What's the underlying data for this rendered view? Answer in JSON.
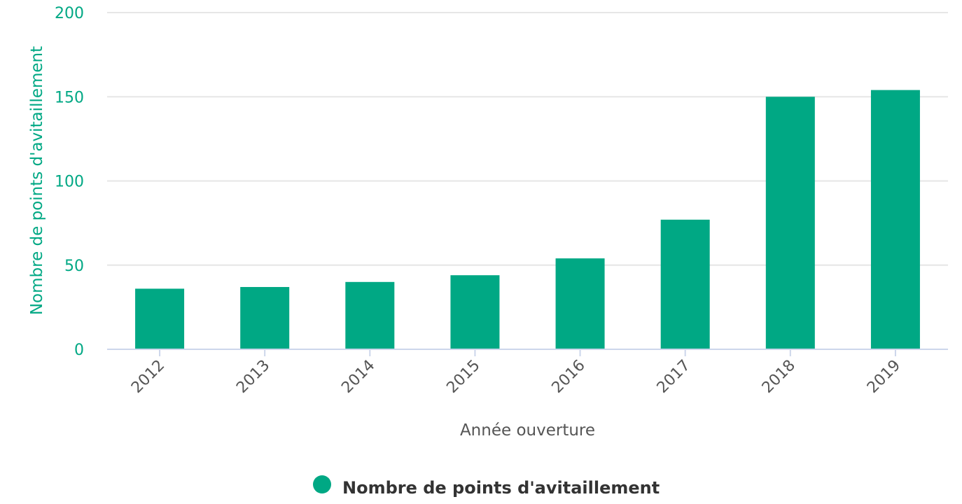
{
  "chart_data": {
    "type": "bar",
    "categories": [
      "2012",
      "2013",
      "2014",
      "2015",
      "2016",
      "2017",
      "2018",
      "2019"
    ],
    "series": [
      {
        "name": "Nombre de points d'avitaillement",
        "values": [
          36,
          37,
          40,
          44,
          54,
          77,
          150,
          154
        ],
        "color": "#00a884"
      }
    ],
    "xlabel": "Année ouverture",
    "ylabel": "Nombre de points d'avitaillement",
    "ylim": [
      0,
      200
    ],
    "yticks": [
      0,
      50,
      100,
      150,
      200
    ],
    "grid": true,
    "legend": "bottom-center"
  },
  "colors": {
    "accent": "#00a884",
    "axis_text": "#555555",
    "legend_text": "#333333"
  }
}
